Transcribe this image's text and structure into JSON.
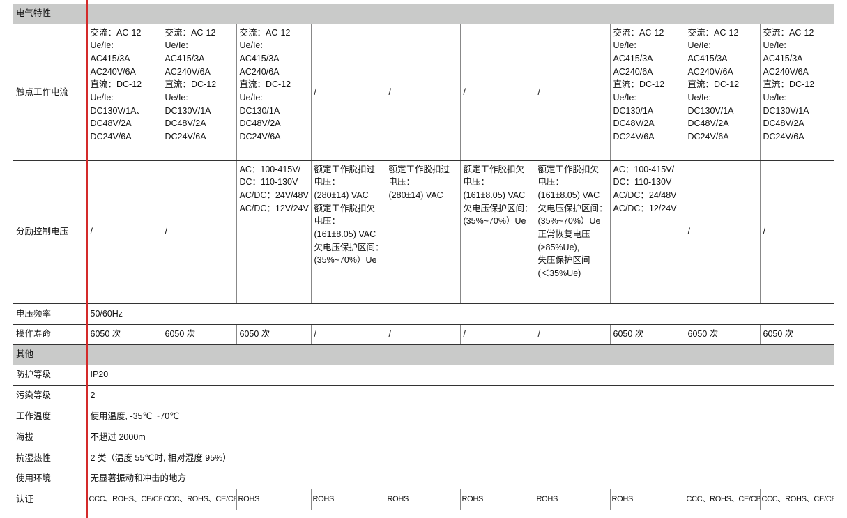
{
  "sections": {
    "electrical": "电气特性",
    "other": "其他"
  },
  "contact_current": {
    "label": "触点工作电流",
    "cells": [
      [
        "交流：AC-12",
        "Ue/Ie:",
        "AC415/3A",
        "AC240V/6A",
        "直流：DC-12",
        "Ue/Ie:",
        "DC130V/1A、",
        "DC48V/2A",
        "DC24V/6A"
      ],
      [
        "交流：AC-12",
        "Ue/Ie:",
        "AC415/3A",
        "AC240V/6A",
        "直流：DC-12",
        "Ue/Ie:",
        "DC130V/1A",
        "DC48V/2A",
        "DC24V/6A"
      ],
      [
        "交流：AC-12",
        "Ue/Ie:",
        "AC415/3A",
        "AC240/6A",
        "直流：DC-12",
        "Ue/Ie:",
        "DC130/1A",
        "DC48V/2A",
        "DC24V/6A"
      ],
      [
        "/"
      ],
      [
        "/"
      ],
      [
        "/"
      ],
      [
        "/"
      ],
      [
        "交流：AC-12",
        "Ue/Ie:",
        "AC415/3A",
        "AC240/6A",
        "直流：DC-12",
        "Ue/Ie:",
        "DC130/1A",
        "DC48V/2A",
        "DC24V/6A"
      ],
      [
        "交流：AC-12",
        "Ue/Ie:",
        "AC415/3A",
        "AC240V/6A",
        "直流：DC-12",
        "Ue/Ie:",
        "DC130V/1A",
        "DC48V/2A",
        "DC24V/6A"
      ],
      [
        "交流：AC-12",
        "Ue/Ie:",
        "AC415/3A",
        "AC240V/6A",
        "直流：DC-12",
        "Ue/Ie:",
        "DC130V/1A",
        "DC48V/2A",
        "DC24V/6A"
      ]
    ]
  },
  "shunt_voltage": {
    "label": "分励控制电压",
    "cells": [
      [
        "/"
      ],
      [
        "/"
      ],
      [
        "AC：100-415V/",
        "DC：110-130V",
        "AC/DC：24V/48V",
        "AC/DC：12V/24V"
      ],
      [
        "额定工作脱扣过",
        "电压：",
        "(280±14) VAC",
        "额定工作脱扣欠",
        "电压：",
        "(161±8.05) VAC",
        "欠电压保护区间：",
        "(35%~70%）Ue"
      ],
      [
        "额定工作脱扣过",
        "电压：",
        "(280±14) VAC"
      ],
      [
        "额定工作脱扣欠",
        "电压：",
        "(161±8.05) VAC",
        "欠电压保护区间：",
        "(35%~70%）Ue"
      ],
      [
        "额定工作脱扣欠",
        "电压：",
        "(161±8.05) VAC",
        "欠电压保护区间：",
        "(35%~70%）Ue",
        "正常恢复电压",
        "(≥85%Ue),",
        "失压保护区间",
        "(＜35%Ue)"
      ],
      [
        "AC：100-415V/",
        "DC：110-130V",
        "AC/DC：24/48V",
        "AC/DC：12/24V"
      ],
      [
        "/"
      ],
      [
        "/"
      ]
    ]
  },
  "frequency": {
    "label": "电压频率",
    "value": "50/60Hz"
  },
  "life": {
    "label": "操作寿命",
    "cells": [
      "6050 次",
      "6050 次",
      "6050 次",
      "/",
      "/",
      "/",
      "/",
      "6050 次",
      "6050 次",
      "6050 次"
    ]
  },
  "other_rows": [
    {
      "label": "防护等级",
      "value": "IP20"
    },
    {
      "label": "污染等级",
      "value": "2"
    },
    {
      "label": "工作温度",
      "value": "使用温度, -35℃ ~70℃"
    },
    {
      "label": "海拔",
      "value": "不超过 2000m"
    },
    {
      "label": "抗湿热性",
      "value": "2 类（温度 55℃时, 相对湿度 95%）"
    },
    {
      "label": "使用环境",
      "value": "无显著振动和冲击的地方"
    }
  ],
  "certification": {
    "label": "认证",
    "cells": [
      "CCC、ROHS、CE/CB",
      "CCC、ROHS、CE/CB",
      "ROHS",
      "ROHS",
      "ROHS",
      "ROHS",
      "ROHS",
      "ROHS",
      "CCC、ROHS、CE/CB",
      "CCC、ROHS、CE/CB"
    ]
  }
}
